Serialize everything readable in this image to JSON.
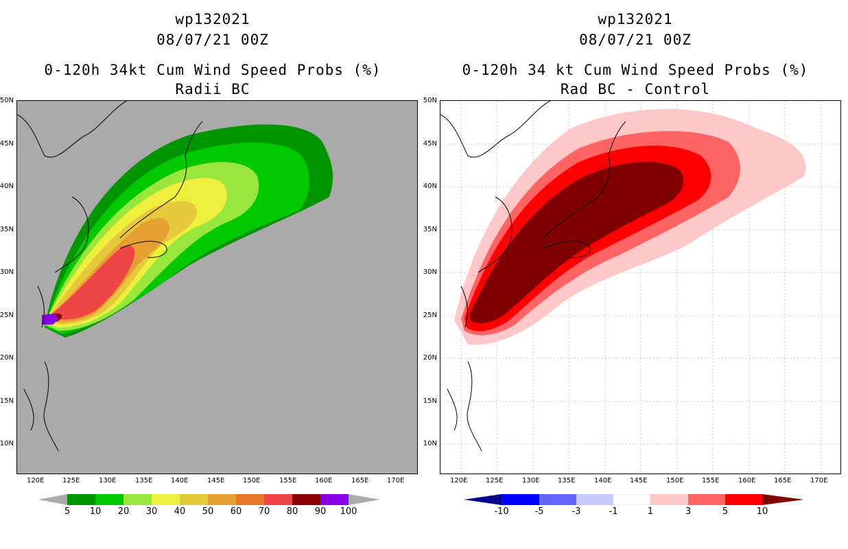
{
  "left": {
    "storm_id": "wp132021",
    "date": "08/07/21 00Z",
    "title": "0-120h 34kt Cum Wind Speed Probs (%)",
    "subtitle": "Radii BC",
    "colorbar": {
      "labels": [
        "5",
        "10",
        "20",
        "30",
        "40",
        "50",
        "60",
        "70",
        "80",
        "90",
        "100"
      ],
      "colors": [
        "#009400",
        "#00c800",
        "#00e600",
        "#9ae63c",
        "#eeee3c",
        "#e6c83c",
        "#e6a032",
        "#e67828",
        "#ee4646",
        "#8b0000",
        "#8a00e6"
      ]
    }
  },
  "right": {
    "storm_id": "wp132021",
    "date": "08/07/21 00Z",
    "title": "0-120h 34 kt Cum Wind Speed Probs (%)",
    "subtitle": "Rad BC - Control",
    "colorbar": {
      "labels": [
        "-10",
        "-5",
        "-3",
        "-1",
        "1",
        "3",
        "5",
        "10"
      ],
      "colors": [
        "#00008b",
        "#0000ff",
        "#6464ff",
        "#c8c8ff",
        "#ffffff",
        "#ffc8c8",
        "#ff6464",
        "#ff0000",
        "#800000"
      ]
    }
  },
  "axes": {
    "lon_labels": [
      "120E",
      "125E",
      "130E",
      "135E",
      "140E",
      "145E",
      "150E",
      "155E",
      "160E",
      "165E",
      "170E"
    ],
    "lat_labels": [
      "50N",
      "45N",
      "40N",
      "35N",
      "30N",
      "25N",
      "20N",
      "15N",
      "10N"
    ]
  },
  "colors": {
    "land_bg_left": "#aaaaaa",
    "bg_right": "#ffffff"
  }
}
